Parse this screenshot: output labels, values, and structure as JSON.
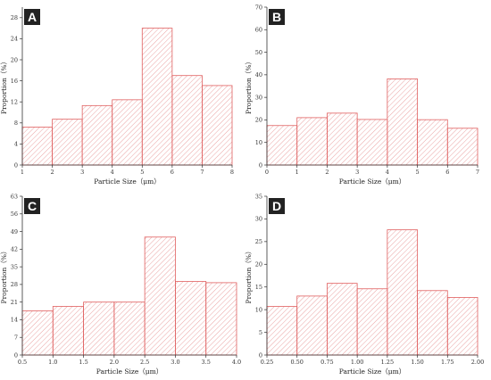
{
  "colors": {
    "bar_edge": "#e06060",
    "hatch": "#e89a9a",
    "axis": "#333333",
    "badge_bg": "#222222"
  },
  "chart_data": [
    {
      "panel": "A",
      "type": "bar",
      "bin_edges": [
        1,
        2,
        3,
        4,
        5,
        6,
        7,
        8
      ],
      "values": [
        7.2,
        8.7,
        11.3,
        12.4,
        26.0,
        17.0,
        15.1
      ],
      "xlabel": "Particle Size（μm）",
      "ylabel": "Proportion（%）",
      "xlim": [
        1,
        8
      ],
      "ylim": [
        0,
        30
      ],
      "xticks": [
        "1",
        "2",
        "3",
        "4",
        "5",
        "6",
        "7",
        "8"
      ],
      "yticks": [
        0,
        4,
        8,
        12,
        16,
        20,
        24,
        28
      ]
    },
    {
      "panel": "B",
      "type": "bar",
      "bin_edges": [
        0,
        1,
        2,
        3,
        4,
        5,
        6,
        7
      ],
      "values": [
        17.5,
        21.0,
        23.0,
        20.2,
        38.2,
        20.1,
        16.3
      ],
      "xlabel": "Particle Size（μm）",
      "ylabel": "Proportion（%）",
      "xlim": [
        0,
        7
      ],
      "ylim": [
        0,
        70
      ],
      "xticks": [
        "0",
        "1",
        "2",
        "3",
        "4",
        "5",
        "6",
        "7"
      ],
      "yticks": [
        0,
        10,
        20,
        30,
        40,
        50,
        60,
        70
      ]
    },
    {
      "panel": "C",
      "type": "bar",
      "bin_edges": [
        0.5,
        1.0,
        1.5,
        2.0,
        2.5,
        3.0,
        3.5,
        4.0
      ],
      "values": [
        17.5,
        19.3,
        21.0,
        21.0,
        46.8,
        29.2,
        28.7
      ],
      "xlabel": "Particle Size（μm）",
      "ylabel": "Proportion（%）",
      "xlim": [
        0.5,
        4.0
      ],
      "ylim": [
        0,
        63
      ],
      "xticks": [
        "0.5",
        "1.0",
        "1.5",
        "2.0",
        "2.5",
        "3.0",
        "3.5",
        "4.0"
      ],
      "yticks": [
        0,
        7,
        14,
        21,
        28,
        35,
        42,
        49,
        56,
        63
      ]
    },
    {
      "panel": "D",
      "type": "bar",
      "bin_edges": [
        0.25,
        0.5,
        0.75,
        1.0,
        1.25,
        1.5,
        1.75,
        2.0
      ],
      "values": [
        10.7,
        13.0,
        15.8,
        14.6,
        27.6,
        14.2,
        12.7
      ],
      "xlabel": "Particle Size（μm）",
      "ylabel": "Proportion（%）",
      "xlim": [
        0.25,
        2.0
      ],
      "ylim": [
        0,
        35
      ],
      "xticks": [
        "0.25",
        "0.50",
        "0.75",
        "1.00",
        "1.25",
        "1.50",
        "1.75",
        "2.00"
      ],
      "yticks": [
        0,
        5,
        10,
        15,
        20,
        25,
        30,
        35
      ]
    }
  ]
}
